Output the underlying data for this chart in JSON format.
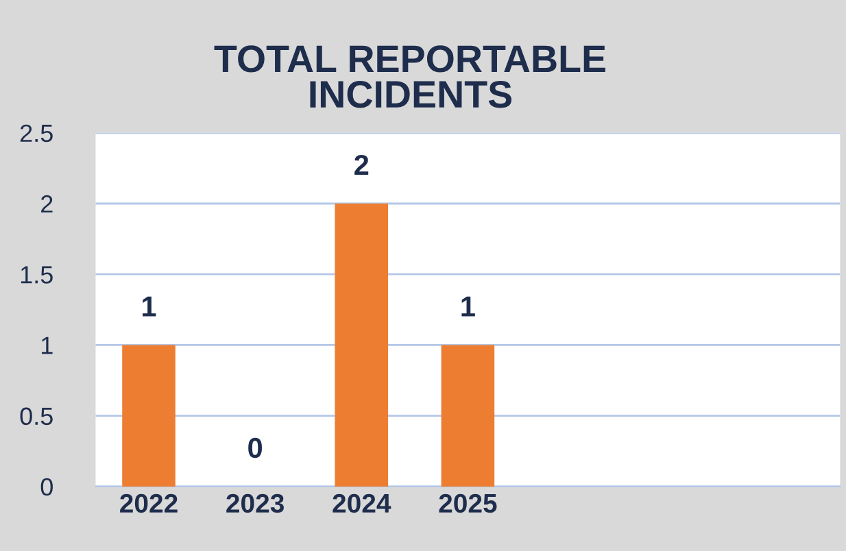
{
  "chart_data": {
    "type": "bar",
    "title": "TOTAL REPORTABLE\nINCIDENTS",
    "categories": [
      "2022",
      "2023",
      "2024",
      "2025",
      null,
      null,
      null
    ],
    "values": [
      1,
      0,
      2,
      1,
      null,
      null,
      null
    ],
    "color": "#ed7d31",
    "ylim": [
      0,
      2.5
    ],
    "yticks": [
      0,
      0.5,
      1,
      1.5,
      2,
      2.5
    ],
    "grid": "y",
    "data_labels": true
  }
}
